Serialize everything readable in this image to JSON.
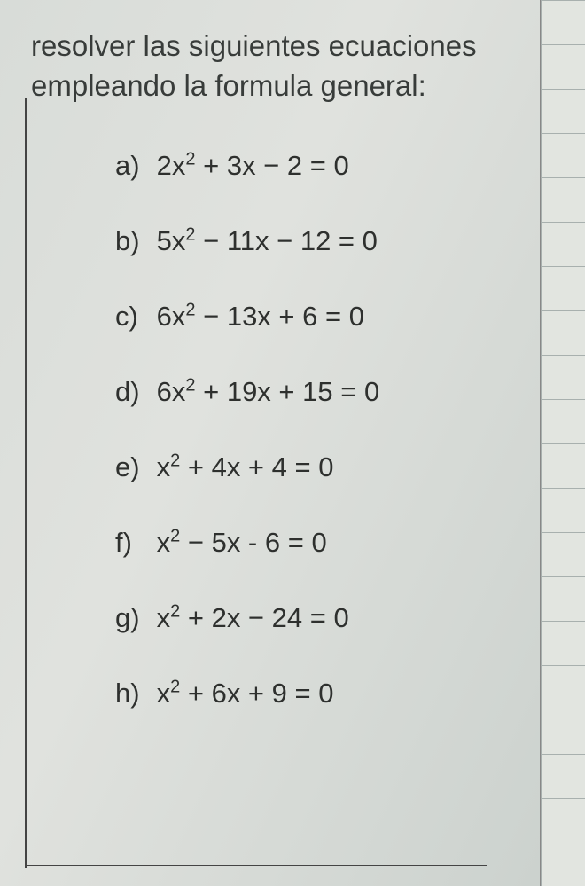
{
  "instructions": {
    "line1": "resolver las siguientes ecuaciones",
    "line2": "empleando la formula general:"
  },
  "equations": [
    {
      "label": "a)",
      "a": "2",
      "b": "+ 3x",
      "c": "− 2",
      "rhs": "= 0"
    },
    {
      "label": "b)",
      "a": "5",
      "b": "− 11x",
      "c": "− 12",
      "rhs": "= 0"
    },
    {
      "label": "c)",
      "a": "6",
      "b": "− 13x",
      "c": "+ 6",
      "rhs": "= 0"
    },
    {
      "label": "d)",
      "a": "6",
      "b": "+ 19x",
      "c": "+ 15",
      "rhs": "= 0"
    },
    {
      "label": "e)",
      "a": "",
      "b": "+ 4x",
      "c": "+ 4",
      "rhs": "= 0"
    },
    {
      "label": "f)",
      "a": "",
      "b": "− 5x",
      "c": "- 6",
      "rhs": "= 0"
    },
    {
      "label": "g)",
      "a": "",
      "b": "+ 2x",
      "c": "− 24",
      "rhs": "= 0"
    },
    {
      "label": "h)",
      "a": "",
      "b": "+ 6x",
      "c": "+ 9",
      "rhs": "= 0"
    }
  ],
  "styling": {
    "paper_bg": "#e0e2de",
    "text_color": "#383c3a",
    "border_color": "#444",
    "grid_bg": "#e2e5e0",
    "grid_line": "#a8b0ae",
    "instruction_fontsize": 33,
    "equation_fontsize": 31,
    "grid_spacing": 50
  }
}
